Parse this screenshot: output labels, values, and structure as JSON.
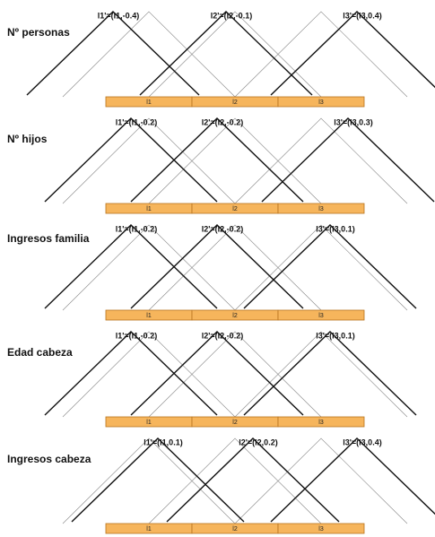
{
  "panels": [
    {
      "title": "Nº personas",
      "labels": [
        "l1'=(l1,-0.4)",
        "l2'=(l2,-0.1)",
        "l3'=(l3,0.4)"
      ],
      "segments": [
        "l1",
        "l2",
        "l3"
      ]
    },
    {
      "title": "Nº hijos",
      "labels": [
        "l1'=(l1,-0.2)",
        "l2'=(l2,-0.2)",
        "l3'=(l3,0.3)"
      ],
      "segments": [
        "l1",
        "l2",
        "l3"
      ]
    },
    {
      "title": "Ingresos familia",
      "labels": [
        "l1'=(l1,-0.2)",
        "l2'=(l2,-0.2)",
        "l3'=(l3,0.1)"
      ],
      "segments": [
        "l1",
        "l2",
        "l3"
      ]
    },
    {
      "title": "Edad cabeza",
      "labels": [
        "l1'=(l1,-0.2)",
        "l2'=(l2,-0.2)",
        "l3'=(l3,0.1)"
      ],
      "segments": [
        "l1",
        "l2",
        "l3"
      ]
    },
    {
      "title": "Ingresos cabeza",
      "labels": [
        "l1'=(l1,0.1)",
        "l2'=(l2,0.2)",
        "l3'=(l3,0.4)"
      ],
      "segments": [
        "l1",
        "l2",
        "l3"
      ]
    }
  ]
}
